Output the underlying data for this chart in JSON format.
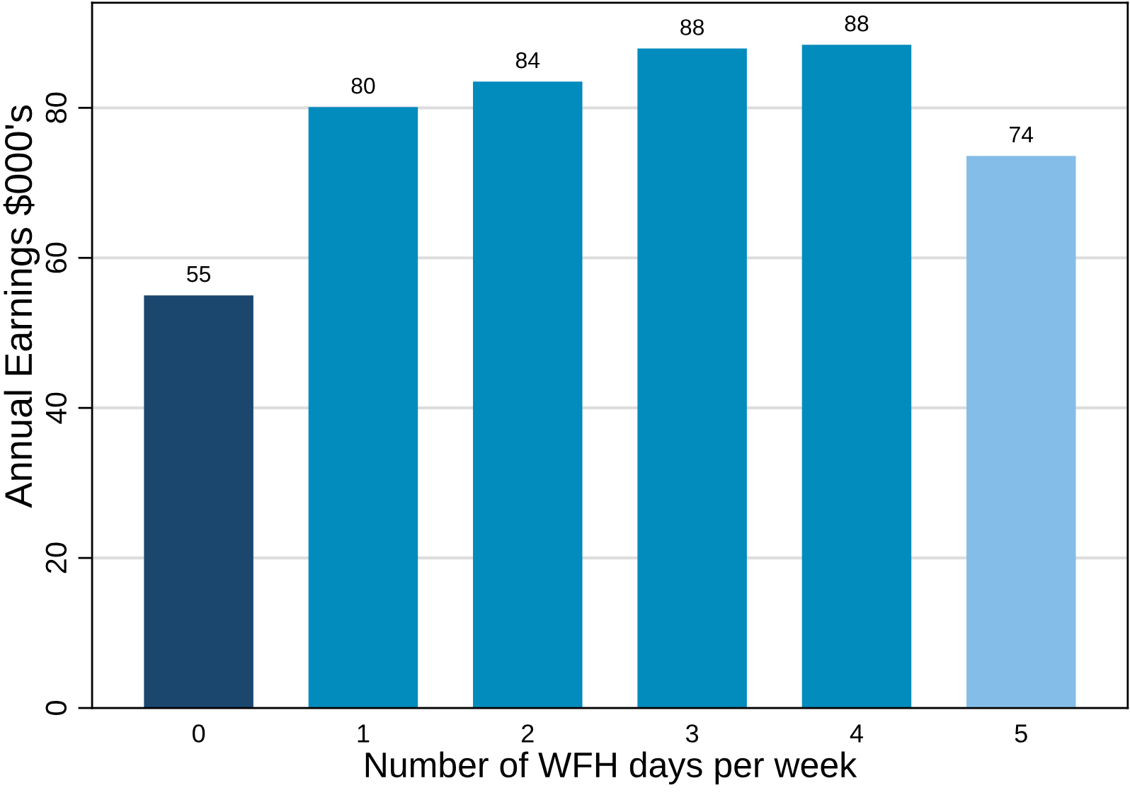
{
  "chart_data": {
    "type": "bar",
    "xlabel": "Number of WFH days per week",
    "ylabel": "Annual Earnings $000's",
    "categories": [
      "0",
      "1",
      "2",
      "3",
      "4",
      "5"
    ],
    "values": [
      55,
      80.1,
      83.5,
      87.9,
      88.4,
      73.6
    ],
    "colors": [
      "#1b476f",
      "#028bbd",
      "#028bbd",
      "#028bbd",
      "#028bbd",
      "#84bee8"
    ],
    "value_labels": [
      "55",
      "80",
      "84",
      "88",
      "88",
      "74"
    ],
    "ylim": [
      0,
      94
    ],
    "yticks": [
      0,
      20,
      40,
      60,
      80
    ],
    "grid": "y"
  }
}
